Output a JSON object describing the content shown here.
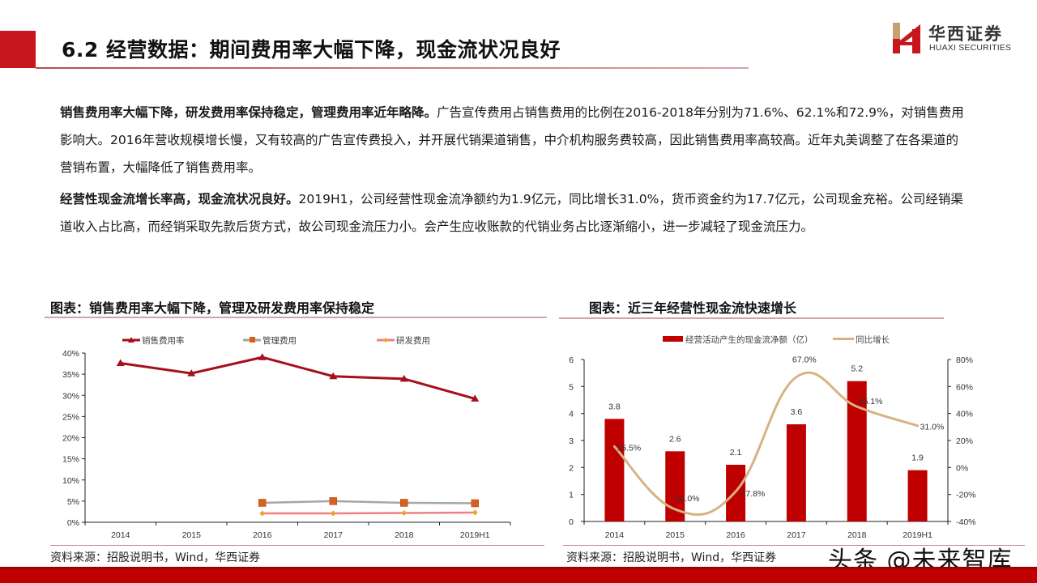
{
  "header": {
    "title": "6.2 经营数据：期间费用率大幅下降，现金流状况良好",
    "accent_color": "#c8161d"
  },
  "logo": {
    "cn": "华西证券",
    "en": "HUAXI SECURITIES",
    "icon": "huaxi-h-logo-icon"
  },
  "body": {
    "p1_bold": "销售费用率大幅下降，研发费用率保持稳定，管理费用率近年略降。",
    "p1_text": "广告宣传费用占销售费用的比例在2016-2018年分别为71.6%、62.1%和72.9%，对销售费用影响大。2016年营收规模增长慢，又有较高的广告宣传费投入，并开展代销渠道销售，中介机构服务费较高，因此销售费用率高较高。近年丸美调整了在各渠道的营销布置，大幅降低了销售费用率。",
    "p2_bold": "经营性现金流增长率高，现金流状况良好。",
    "p2_text": "2019H1，公司经营性现金流净额约为1.9亿元，同比增长31.0%，货币资金约为17.7亿元，公司现金充裕。公司经销渠道收入占比高，而经销采取先款后货方式，故公司现金流压力小。会产生应收账款的代销业务占比逐渐缩小，进一步减轻了现金流压力。"
  },
  "left_chart": {
    "title": "图表：销售费用率大幅下降，管理及研发费用率保持稳定",
    "source": "资料来源：招股说明书，Wind，华西证券"
  },
  "right_chart": {
    "title": "图表：近三年经营性现金流快速增长",
    "source": "资料来源：招股说明书，Wind，华西证券"
  },
  "watermark": "头条 @未来智库",
  "chart_data": [
    {
      "type": "line",
      "title": "图表：销售费用率大幅下降，管理及研发费用率保持稳定",
      "categories": [
        "2014",
        "2015",
        "2016",
        "2017",
        "2018",
        "2019H1"
      ],
      "series": [
        {
          "name": "销售费用率",
          "color": "#a50f1e",
          "marker": "triangle",
          "values": [
            37.6,
            35.2,
            39.0,
            34.5,
            33.9,
            29.2
          ]
        },
        {
          "name": "管理费用",
          "color": "#a6a6a6",
          "marker_color": "#d9601a",
          "marker": "square",
          "values": [
            null,
            null,
            4.6,
            5.0,
            4.6,
            4.5
          ]
        },
        {
          "name": "研发费用",
          "color": "#f08080",
          "marker_color": "#f0a030",
          "marker": "diamond",
          "values": [
            null,
            null,
            2.1,
            2.1,
            2.2,
            2.3
          ]
        }
      ],
      "yticks": [
        "0%",
        "5%",
        "10%",
        "15%",
        "20%",
        "25%",
        "30%",
        "35%",
        "40%"
      ],
      "ylim": [
        0,
        40
      ],
      "ylabel": "",
      "xlabel": "",
      "legend_position": "top",
      "grid": false
    },
    {
      "type": "bar+line",
      "title": "图表：近三年经营性现金流快速增长",
      "categories": [
        "2014",
        "2015",
        "2016",
        "2017",
        "2018",
        "2019H1"
      ],
      "series": [
        {
          "name": "经营活动产生的现金流净额（亿）",
          "type": "bar",
          "axis": "left",
          "color": "#c00000",
          "values": [
            3.8,
            2.6,
            2.1,
            3.6,
            5.2,
            1.9
          ],
          "labels": [
            "3.8",
            "2.6",
            "2.1",
            "3.6",
            "5.2",
            "1.9"
          ]
        },
        {
          "name": "同比增长",
          "type": "line",
          "axis": "right",
          "color": "#d4b483",
          "smooth": true,
          "values": [
            15.5,
            -31.0,
            -17.8,
            67.0,
            45.1,
            31.0
          ],
          "labels": [
            "15.5%",
            "-31.0%",
            "-17.8%",
            "67.0%",
            "45.1%",
            "31.0%"
          ]
        }
      ],
      "yticks_left": [
        "0",
        "1",
        "2",
        "3",
        "4",
        "5",
        "6"
      ],
      "ylim_left": [
        0,
        6
      ],
      "yticks_right": [
        "-40%",
        "-20%",
        "0%",
        "20%",
        "40%",
        "60%",
        "80%"
      ],
      "ylim_right": [
        -40,
        80
      ],
      "legend_position": "top",
      "grid": false
    }
  ]
}
